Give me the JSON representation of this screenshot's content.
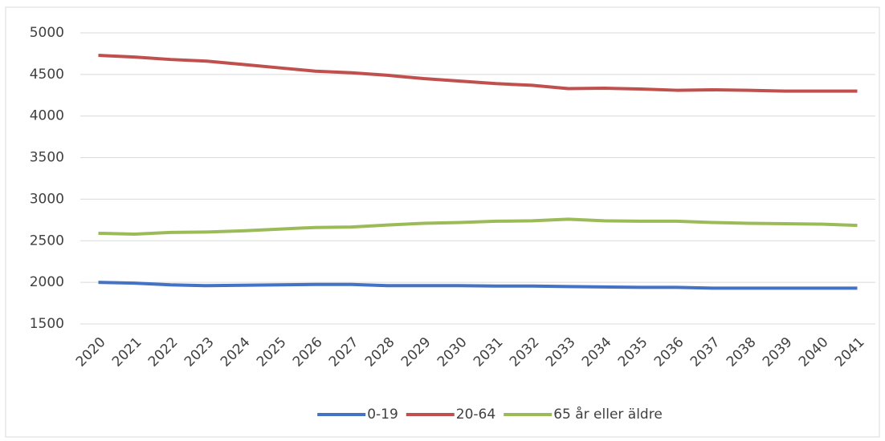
{
  "chart_data": {
    "type": "line",
    "categories": [
      "2020",
      "2021",
      "2022",
      "2023",
      "2024",
      "2025",
      "2026",
      "2027",
      "2028",
      "2029",
      "2030",
      "2031",
      "2032",
      "2033",
      "2034",
      "2035",
      "2036",
      "2037",
      "2038",
      "2039",
      "2040",
      "2041"
    ],
    "series": [
      {
        "name": "0-19",
        "color": "#4472c4",
        "values": [
          2000,
          1990,
          1970,
          1960,
          1965,
          1970,
          1975,
          1975,
          1960,
          1960,
          1960,
          1955,
          1955,
          1950,
          1945,
          1940,
          1940,
          1930,
          1930,
          1930,
          1930,
          1930
        ]
      },
      {
        "name": "20-64",
        "color": "#c0504d",
        "values": [
          4730,
          4710,
          4680,
          4660,
          4620,
          4580,
          4540,
          4520,
          4490,
          4450,
          4420,
          4390,
          4370,
          4330,
          4335,
          4325,
          4310,
          4315,
          4310,
          4300,
          4300,
          4300
        ]
      },
      {
        "name": "65 år eller äldre",
        "color": "#9bbb59",
        "values": [
          2590,
          2580,
          2600,
          2605,
          2620,
          2640,
          2660,
          2665,
          2690,
          2710,
          2720,
          2735,
          2740,
          2760,
          2740,
          2735,
          2735,
          2720,
          2710,
          2705,
          2700,
          2685
        ]
      }
    ],
    "ylim": [
      1500,
      5000
    ],
    "yticks": [
      1500,
      2000,
      2500,
      3000,
      3500,
      4000,
      4500,
      5000
    ],
    "grid": true,
    "legend": "bottom"
  }
}
